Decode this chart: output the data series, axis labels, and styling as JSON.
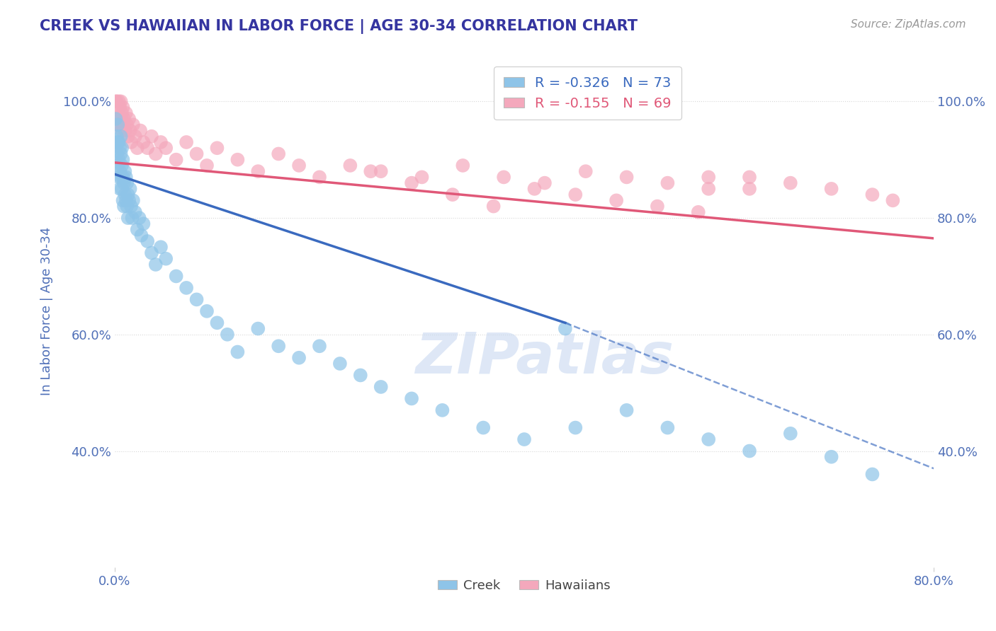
{
  "title": "CREEK VS HAWAIIAN IN LABOR FORCE | AGE 30-34 CORRELATION CHART",
  "source": "Source: ZipAtlas.com",
  "ylabel": "In Labor Force | Age 30-34",
  "legend_creek": "Creek",
  "legend_hawaiians": "Hawaiians",
  "creek_R": "-0.326",
  "creek_N": "73",
  "hawaiian_R": "-0.155",
  "hawaiian_N": "69",
  "blue_color": "#8ec4e8",
  "pink_color": "#f4a8bc",
  "blue_line_color": "#3a6abf",
  "pink_line_color": "#e05878",
  "watermark_color": "#c8d8f0",
  "background_color": "#ffffff",
  "grid_color": "#d8d8d8",
  "title_color": "#3535a0",
  "axis_label_color": "#5070b8",
  "creek_x": [
    0.001,
    0.002,
    0.002,
    0.003,
    0.003,
    0.003,
    0.004,
    0.004,
    0.004,
    0.005,
    0.005,
    0.005,
    0.006,
    0.006,
    0.006,
    0.007,
    0.007,
    0.007,
    0.008,
    0.008,
    0.008,
    0.009,
    0.009,
    0.01,
    0.01,
    0.011,
    0.011,
    0.012,
    0.012,
    0.013,
    0.013,
    0.014,
    0.015,
    0.016,
    0.017,
    0.018,
    0.02,
    0.022,
    0.024,
    0.026,
    0.028,
    0.032,
    0.036,
    0.04,
    0.045,
    0.05,
    0.06,
    0.07,
    0.08,
    0.09,
    0.1,
    0.11,
    0.12,
    0.14,
    0.16,
    0.18,
    0.2,
    0.22,
    0.24,
    0.26,
    0.29,
    0.32,
    0.36,
    0.4,
    0.44,
    0.45,
    0.5,
    0.54,
    0.58,
    0.62,
    0.66,
    0.7,
    0.74
  ],
  "creek_y": [
    0.97,
    0.94,
    0.91,
    0.93,
    0.89,
    0.96,
    0.9,
    0.87,
    0.93,
    0.88,
    0.92,
    0.85,
    0.91,
    0.87,
    0.94,
    0.89,
    0.85,
    0.92,
    0.87,
    0.83,
    0.9,
    0.86,
    0.82,
    0.88,
    0.84,
    0.87,
    0.83,
    0.86,
    0.82,
    0.84,
    0.8,
    0.83,
    0.85,
    0.82,
    0.8,
    0.83,
    0.81,
    0.78,
    0.8,
    0.77,
    0.79,
    0.76,
    0.74,
    0.72,
    0.75,
    0.73,
    0.7,
    0.68,
    0.66,
    0.64,
    0.62,
    0.6,
    0.57,
    0.61,
    0.58,
    0.56,
    0.58,
    0.55,
    0.53,
    0.51,
    0.49,
    0.47,
    0.44,
    0.42,
    0.61,
    0.44,
    0.47,
    0.44,
    0.42,
    0.4,
    0.43,
    0.39,
    0.36
  ],
  "hawaiian_x": [
    0.001,
    0.002,
    0.002,
    0.003,
    0.003,
    0.004,
    0.004,
    0.005,
    0.005,
    0.006,
    0.006,
    0.007,
    0.007,
    0.008,
    0.008,
    0.009,
    0.01,
    0.011,
    0.012,
    0.013,
    0.014,
    0.015,
    0.016,
    0.018,
    0.02,
    0.022,
    0.025,
    0.028,
    0.032,
    0.036,
    0.04,
    0.045,
    0.05,
    0.06,
    0.07,
    0.08,
    0.09,
    0.1,
    0.12,
    0.14,
    0.16,
    0.18,
    0.2,
    0.23,
    0.26,
    0.3,
    0.34,
    0.38,
    0.42,
    0.46,
    0.5,
    0.54,
    0.58,
    0.62,
    0.66,
    0.7,
    0.74,
    0.76,
    0.58,
    0.62,
    0.25,
    0.29,
    0.33,
    0.37,
    0.41,
    0.45,
    0.49,
    0.53,
    0.57
  ],
  "hawaiian_y": [
    1.0,
    0.97,
    1.0,
    0.96,
    0.99,
    0.97,
    1.0,
    0.96,
    0.99,
    0.97,
    1.0,
    0.95,
    0.98,
    0.96,
    0.99,
    0.97,
    0.95,
    0.98,
    0.96,
    0.94,
    0.97,
    0.95,
    0.93,
    0.96,
    0.94,
    0.92,
    0.95,
    0.93,
    0.92,
    0.94,
    0.91,
    0.93,
    0.92,
    0.9,
    0.93,
    0.91,
    0.89,
    0.92,
    0.9,
    0.88,
    0.91,
    0.89,
    0.87,
    0.89,
    0.88,
    0.87,
    0.89,
    0.87,
    0.86,
    0.88,
    0.87,
    0.86,
    0.85,
    0.87,
    0.86,
    0.85,
    0.84,
    0.83,
    0.87,
    0.85,
    0.88,
    0.86,
    0.84,
    0.82,
    0.85,
    0.84,
    0.83,
    0.82,
    0.81
  ],
  "xlim": [
    0.0,
    0.8
  ],
  "ylim": [
    0.2,
    1.08
  ],
  "yticks": [
    0.4,
    0.6,
    0.8,
    1.0
  ],
  "xticks": [
    0.0,
    0.8
  ],
  "creek_line_x0": 0.0,
  "creek_line_x1": 0.44,
  "creek_line_x2": 0.8,
  "creek_line_y0": 0.875,
  "creek_line_y1": 0.62,
  "creek_line_y2": 0.37,
  "hawaiian_line_x0": 0.0,
  "hawaiian_line_x1": 0.8,
  "hawaiian_line_y0": 0.895,
  "hawaiian_line_y1": 0.765
}
